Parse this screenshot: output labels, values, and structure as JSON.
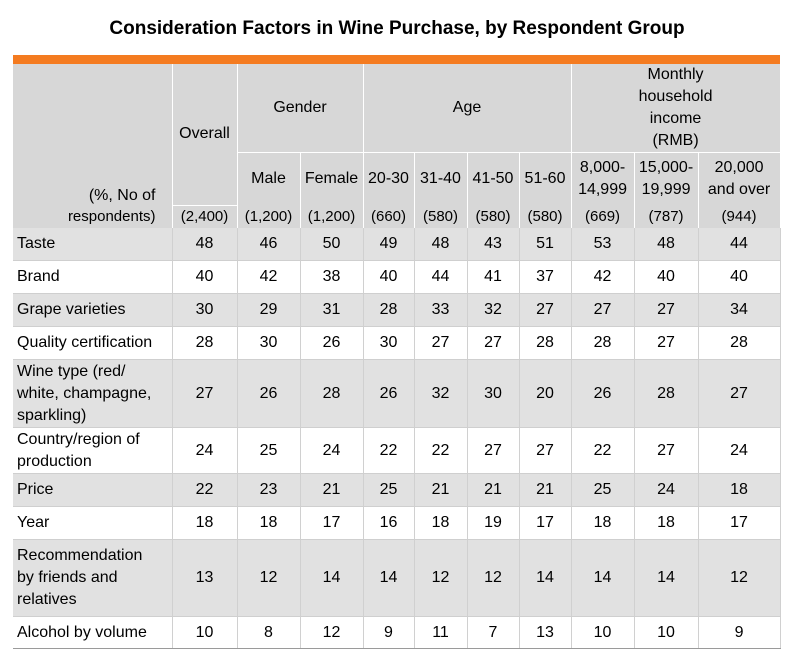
{
  "title": "Consideration Factors in Wine Purchase, by Respondent Group",
  "colors": {
    "accent_bar": "#f47b20",
    "header_bg": "#d7d7d7",
    "shaded_row": "#e1e1e1"
  },
  "chart_data": {
    "type": "table",
    "title": "Consideration Factors in Wine Purchase, by Respondent Group",
    "stub_label": [
      "(%, No of",
      "respondents)"
    ],
    "groups": [
      {
        "label": "",
        "columns": [
          "Overall"
        ]
      },
      {
        "label": "Gender",
        "columns": [
          "Male",
          "Female"
        ]
      },
      {
        "label": "Age",
        "columns": [
          "20-30",
          "31-40",
          "41-50",
          "51-60"
        ]
      },
      {
        "label": "Monthly household income (RMB)",
        "columns": [
          "8,000-14,999",
          "15,000-19,999",
          "20,000 and over"
        ]
      }
    ],
    "column_labels": [
      [
        "Overall"
      ],
      [
        "Male"
      ],
      [
        "Female"
      ],
      [
        "20-30"
      ],
      [
        "31-40"
      ],
      [
        "41-50"
      ],
      [
        "51-60"
      ],
      [
        "8,000-",
        "14,999"
      ],
      [
        "15,000-",
        "19,999"
      ],
      [
        "20,000",
        "and over"
      ]
    ],
    "sample_sizes": [
      "(2,400)",
      "(1,200)",
      "(1,200)",
      "(660)",
      "(580)",
      "(580)",
      "(580)",
      "(669)",
      "(787)",
      "(944)"
    ],
    "rows": [
      {
        "label": [
          "Taste"
        ],
        "values": [
          48,
          46,
          50,
          49,
          48,
          43,
          51,
          53,
          48,
          44
        ]
      },
      {
        "label": [
          "Brand"
        ],
        "values": [
          40,
          42,
          38,
          40,
          44,
          41,
          37,
          42,
          40,
          40
        ]
      },
      {
        "label": [
          "Grape varieties"
        ],
        "values": [
          30,
          29,
          31,
          28,
          33,
          32,
          27,
          27,
          27,
          34
        ]
      },
      {
        "label": [
          "Quality certification"
        ],
        "values": [
          28,
          30,
          26,
          30,
          27,
          27,
          28,
          28,
          27,
          28
        ]
      },
      {
        "label": [
          "Wine type (red/",
          "white, champagne,",
          "sparkling)"
        ],
        "values": [
          27,
          26,
          28,
          26,
          32,
          30,
          20,
          26,
          28,
          27
        ]
      },
      {
        "label": [
          "Country/region of",
          "production"
        ],
        "values": [
          24,
          25,
          24,
          22,
          22,
          27,
          27,
          22,
          27,
          24
        ]
      },
      {
        "label": [
          "Price"
        ],
        "values": [
          22,
          23,
          21,
          25,
          21,
          21,
          21,
          25,
          24,
          18
        ]
      },
      {
        "label": [
          "Year"
        ],
        "values": [
          18,
          18,
          17,
          16,
          18,
          19,
          17,
          18,
          18,
          17
        ]
      },
      {
        "label": [
          "Recommendation",
          "by friends and",
          "relatives"
        ],
        "values": [
          13,
          12,
          14,
          14,
          12,
          12,
          14,
          14,
          14,
          12
        ]
      },
      {
        "label": [
          "Alcohol by volume"
        ],
        "values": [
          10,
          8,
          12,
          9,
          11,
          7,
          13,
          10,
          10,
          9
        ]
      }
    ]
  }
}
